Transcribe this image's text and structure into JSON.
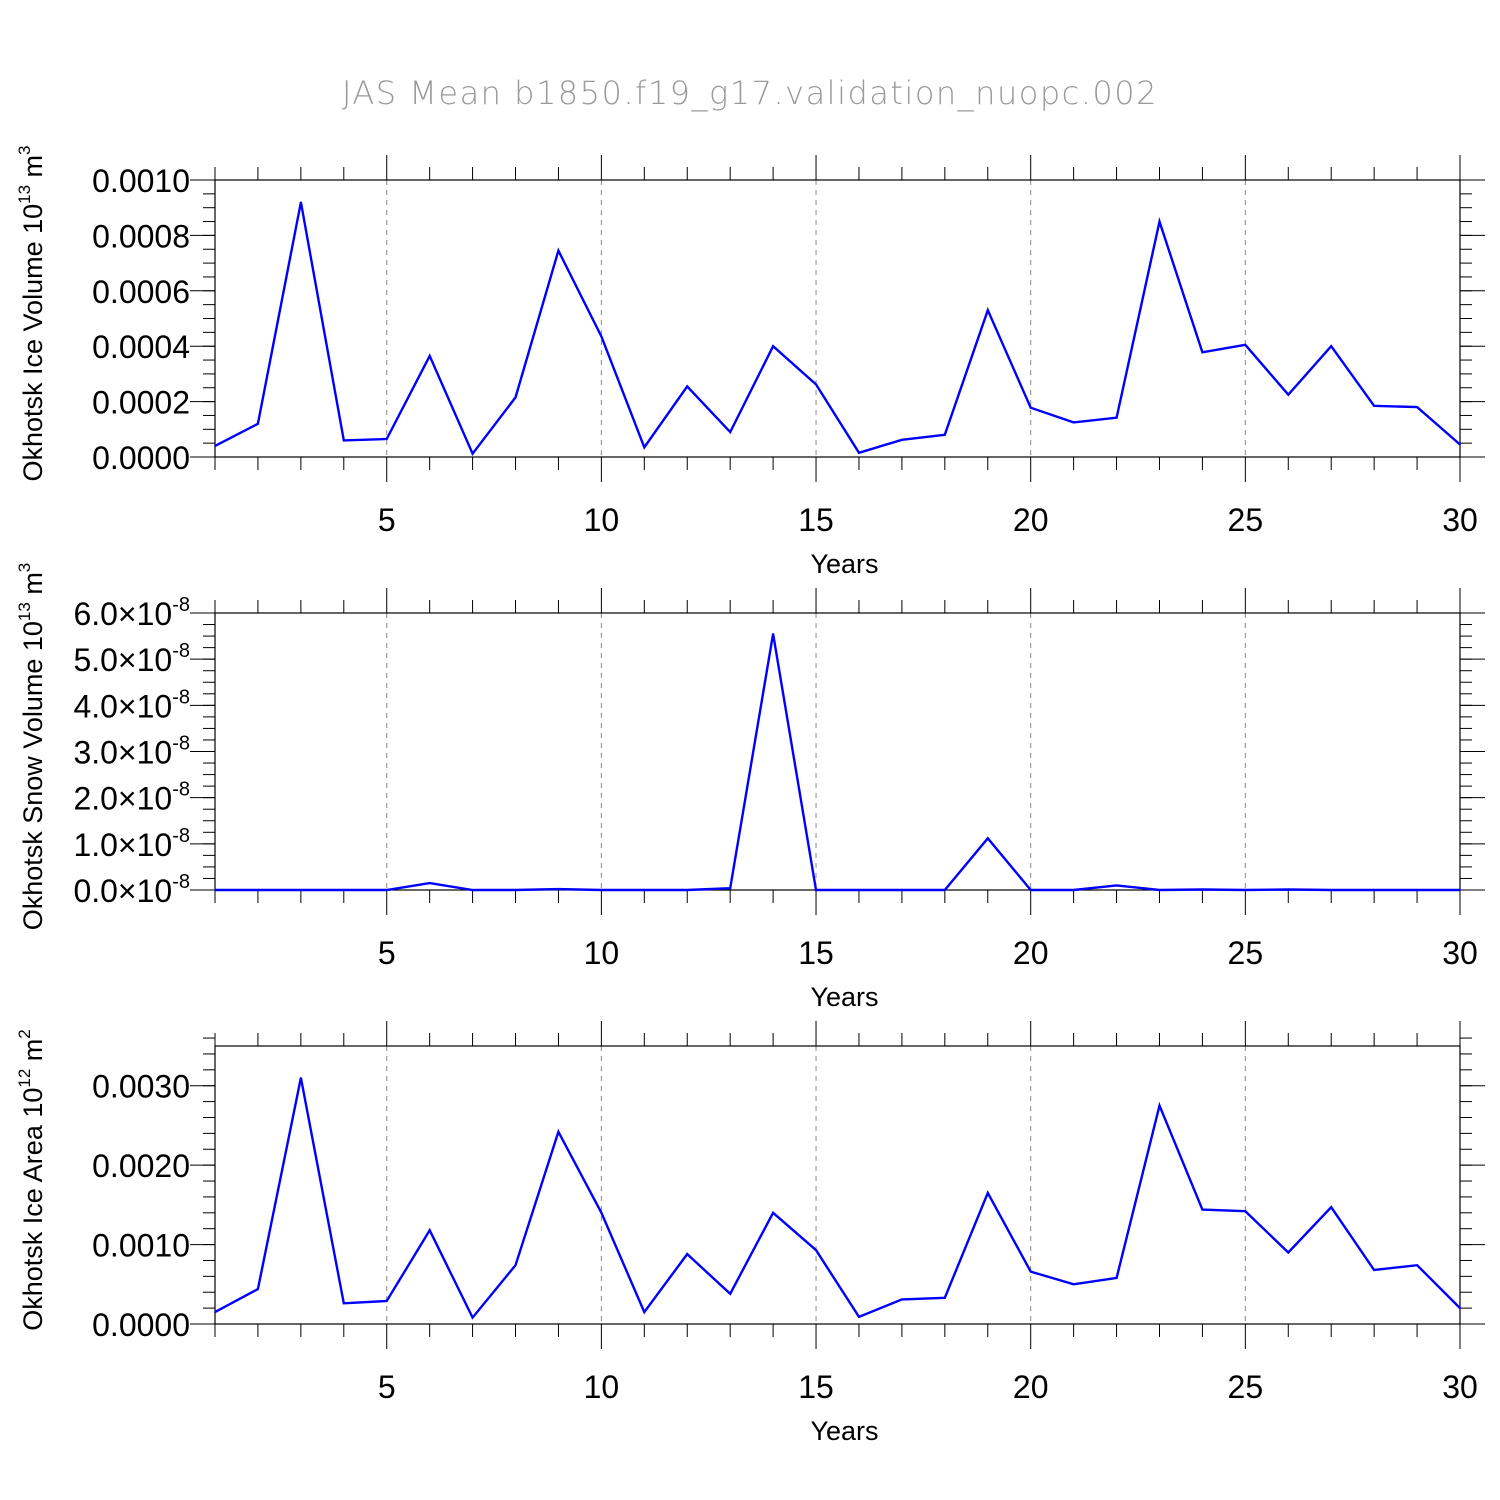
{
  "figure": {
    "title": "JAS Mean b1850.f19_g17.validation_nuopc.002",
    "line_color": "#0000ff",
    "grid_color": "#888888"
  },
  "chart_data": [
    {
      "type": "line",
      "id": "ice-volume",
      "ylabel": "Okhotsk Ice Volume 10",
      "ylabel_exp": "13",
      "ylabel_unit": " m",
      "ylabel_unit_exp": "3",
      "xlabel": "Years",
      "xlim": [
        1,
        30
      ],
      "ylim": [
        0,
        0.001
      ],
      "xticks": [
        5,
        10,
        15,
        20,
        25,
        30
      ],
      "xtick_labels": [
        "5",
        "10",
        "15",
        "20",
        "25",
        "30"
      ],
      "yticks": [
        0,
        0.0002,
        0.0004,
        0.0006,
        0.0008,
        0.001
      ],
      "ytick_labels": [
        "0.0000",
        "0.0002",
        "0.0004",
        "0.0006",
        "0.0008",
        "0.0010"
      ],
      "y_minor_step": 5e-05,
      "grid": "x-dashed",
      "series": [
        {
          "name": "Okhotsk Ice Volume",
          "x": [
            1,
            2,
            3,
            4,
            5,
            6,
            7,
            8,
            9,
            10,
            11,
            12,
            13,
            14,
            15,
            16,
            17,
            18,
            19,
            20,
            21,
            22,
            23,
            24,
            25,
            26,
            27,
            28,
            29,
            30
          ],
          "values": [
            4e-05,
            0.00012,
            0.00092,
            6e-05,
            6.5e-05,
            0.000365,
            1.2e-05,
            0.000215,
            0.000745,
            0.000435,
            3.5e-05,
            0.000255,
            9e-05,
            0.0004,
            0.000262,
            1.5e-05,
            6.2e-05,
            8e-05,
            0.00053,
            0.000178,
            0.000125,
            0.000142,
            0.00085,
            0.000378,
            0.000405,
            0.000225,
            0.0004,
            0.000185,
            0.00018,
            4.5e-05
          ]
        }
      ]
    },
    {
      "type": "line",
      "id": "snow-volume",
      "ylabel": "Okhotsk Snow Volume 10",
      "ylabel_exp": "13",
      "ylabel_unit": " m",
      "ylabel_unit_exp": "3",
      "xlabel": "Years",
      "xlim": [
        1,
        30
      ],
      "ylim": [
        0,
        6e-08
      ],
      "xticks": [
        5,
        10,
        15,
        20,
        25,
        30
      ],
      "xtick_labels": [
        "5",
        "10",
        "15",
        "20",
        "25",
        "30"
      ],
      "yticks": [
        0,
        1e-08,
        2e-08,
        3e-08,
        4e-08,
        5e-08,
        6e-08
      ],
      "ytick_labels": [
        "0.0",
        "1.0",
        "2.0",
        "3.0",
        "4.0",
        "5.0",
        "6.0"
      ],
      "ytick_suffix": "×10",
      "ytick_suffix_exp": "-8",
      "y_minor_step": 2.5e-09,
      "grid": "x-dashed",
      "series": [
        {
          "name": "Okhotsk Snow Volume",
          "x": [
            1,
            2,
            3,
            4,
            5,
            6,
            7,
            8,
            9,
            10,
            11,
            12,
            13,
            14,
            15,
            16,
            17,
            18,
            19,
            20,
            21,
            22,
            23,
            24,
            25,
            26,
            27,
            28,
            29,
            30
          ],
          "values": [
            0,
            0,
            0,
            0,
            0,
            1.5e-09,
            0,
            0,
            2e-10,
            0,
            0,
            0,
            4e-10,
            5.55e-08,
            0,
            0,
            0,
            0,
            1.12e-08,
            0,
            0,
            1e-09,
            0,
            1e-10,
            0,
            1e-10,
            0,
            0,
            0,
            0
          ]
        }
      ]
    },
    {
      "type": "line",
      "id": "ice-area",
      "ylabel": "Okhotsk Ice Area 10",
      "ylabel_exp": "12",
      "ylabel_unit": " m",
      "ylabel_unit_exp": "2",
      "xlabel": "Years",
      "xlim": [
        1,
        30
      ],
      "ylim": [
        0,
        0.0035
      ],
      "xticks": [
        5,
        10,
        15,
        20,
        25,
        30
      ],
      "xtick_labels": [
        "5",
        "10",
        "15",
        "20",
        "25",
        "30"
      ],
      "yticks": [
        0,
        0.001,
        0.002,
        0.003
      ],
      "ytick_labels": [
        "0.0000",
        "0.0010",
        "0.0020",
        "0.0030"
      ],
      "y_minor_step": 0.0002,
      "grid": "x-dashed",
      "series": [
        {
          "name": "Okhotsk Ice Area",
          "x": [
            1,
            2,
            3,
            4,
            5,
            6,
            7,
            8,
            9,
            10,
            11,
            12,
            13,
            14,
            15,
            16,
            17,
            18,
            19,
            20,
            21,
            22,
            23,
            24,
            25,
            26,
            27,
            28,
            29,
            30
          ],
          "values": [
            0.00015,
            0.00044,
            0.0031,
            0.00026,
            0.00029,
            0.00118,
            8e-05,
            0.00074,
            0.00242,
            0.0014,
            0.00015,
            0.00088,
            0.00038,
            0.0014,
            0.00093,
            9e-05,
            0.00031,
            0.00033,
            0.00165,
            0.00066,
            0.0005,
            0.00058,
            0.00275,
            0.00144,
            0.00142,
            0.0009,
            0.00147,
            0.00068,
            0.00074,
            0.0002
          ]
        }
      ]
    }
  ]
}
